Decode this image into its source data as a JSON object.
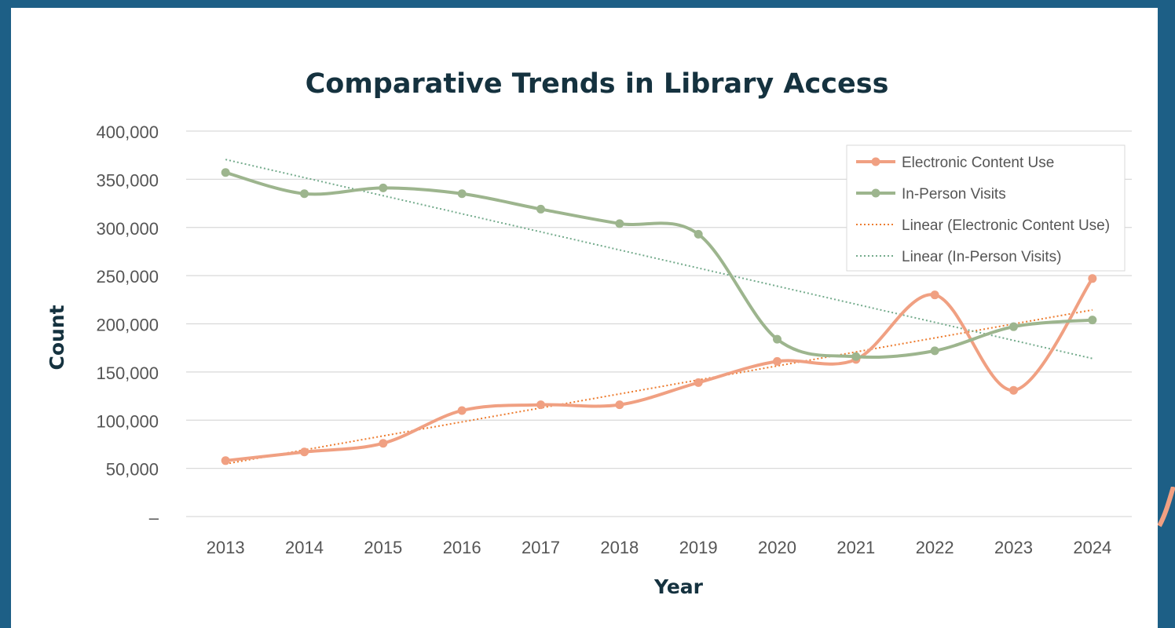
{
  "chart_data": {
    "type": "line",
    "title": "Comparative Trends in Library Access",
    "xlabel": "Year",
    "ylabel": "Count",
    "categories": [
      "2013",
      "2014",
      "2015",
      "2016",
      "2017",
      "2018",
      "2019",
      "2020",
      "2021",
      "2022",
      "2023",
      "2024"
    ],
    "ylim": [
      0,
      400000
    ],
    "yticks": [
      0,
      50000,
      100000,
      150000,
      200000,
      250000,
      300000,
      350000,
      400000
    ],
    "ytick_labels": [
      "–",
      "50,000",
      "100,000",
      "150,000",
      "200,000",
      "250,000",
      "300,000",
      "350,000",
      "400,000"
    ],
    "grid": true,
    "legend_position": "top-right",
    "series": [
      {
        "name": "Electronic Content Use",
        "color": "#f0a082",
        "style": "smooth-line-markers",
        "values": [
          58000,
          67000,
          76000,
          110000,
          116000,
          116000,
          139000,
          161000,
          163000,
          230000,
          131000,
          247000
        ]
      },
      {
        "name": "In-Person Visits",
        "color": "#9db58e",
        "style": "smooth-line-markers",
        "values": [
          357000,
          335000,
          341000,
          335000,
          319000,
          304000,
          293000,
          184000,
          166000,
          172000,
          197000,
          204000
        ]
      }
    ],
    "trendlines": [
      {
        "name": "Linear (Electronic Content Use)",
        "of": "Electronic Content Use",
        "color": "#ed7d31",
        "style": "dotted"
      },
      {
        "name": "Linear (In-Person Visits)",
        "of": "In-Person Visits",
        "color": "#74ab8c",
        "style": "dotted"
      }
    ]
  }
}
